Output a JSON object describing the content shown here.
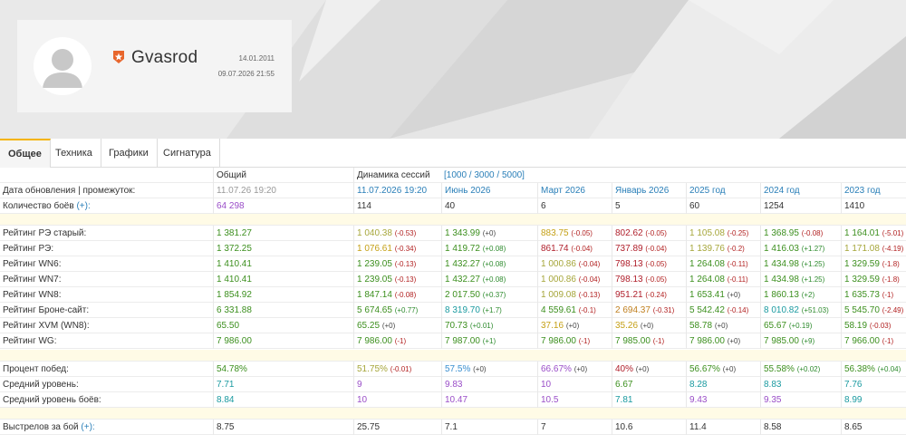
{
  "profile": {
    "nickname": "Gvasrod",
    "registered": "14.01.2011",
    "last_battle": "09.07.2026 21:55"
  },
  "tabs": [
    {
      "label": "Общее",
      "active": true
    },
    {
      "label": "Техника",
      "active": false
    },
    {
      "label": "Графики",
      "active": false
    },
    {
      "label": "Сигнатура",
      "active": false
    }
  ],
  "header": {
    "general": "Общий",
    "dynamics": "Динамика сессий",
    "ranges": "[1000 / 3000 / 5000]"
  },
  "update_row": {
    "label": "Дата обновления | промежуток:",
    "values": [
      "11.07.26 19:20",
      "11.07.2026 19:20",
      "Июнь 2026",
      "Март 2026",
      "Январь 2026",
      "2025 год",
      "2024 год",
      "2023 год"
    ]
  },
  "battles_row": {
    "label": "Количество боёв",
    "plus": "(+):",
    "values": [
      "64 298",
      "114",
      "40",
      "6",
      "5",
      "60",
      "1254",
      "1410"
    ]
  },
  "ratings": [
    {
      "label": "Рейтинг РЭ старый:",
      "values": [
        {
          "v": "1 381.27",
          "c": "c-green",
          "d": ""
        },
        {
          "v": "1 040.38",
          "c": "c-olive",
          "d": "(-0.53)",
          "s": "neg"
        },
        {
          "v": "1 343.99",
          "c": "c-green",
          "d": "(+0)",
          "s": "zero"
        },
        {
          "v": "883.75",
          "c": "c-yellow",
          "d": "(-0.05)",
          "s": "neg"
        },
        {
          "v": "802.62",
          "c": "c-red",
          "d": "(-0.05)",
          "s": "neg"
        },
        {
          "v": "1 105.08",
          "c": "c-olive",
          "d": "(-0.25)",
          "s": "neg"
        },
        {
          "v": "1 368.95",
          "c": "c-green",
          "d": "(-0.08)",
          "s": "neg"
        },
        {
          "v": "1 164.01",
          "c": "c-green",
          "d": "(-5.01)",
          "s": "neg"
        }
      ]
    },
    {
      "label": "Рейтинг РЭ:",
      "values": [
        {
          "v": "1 372.25",
          "c": "c-green",
          "d": ""
        },
        {
          "v": "1 076.61",
          "c": "c-yellow",
          "d": "(-0.34)",
          "s": "neg"
        },
        {
          "v": "1 419.72",
          "c": "c-green",
          "d": "(+0.08)",
          "s": "pos"
        },
        {
          "v": "861.74",
          "c": "c-red",
          "d": "(-0.04)",
          "s": "neg"
        },
        {
          "v": "737.89",
          "c": "c-red",
          "d": "(-0.04)",
          "s": "neg"
        },
        {
          "v": "1 139.76",
          "c": "c-olive",
          "d": "(-0.2)",
          "s": "neg"
        },
        {
          "v": "1 416.03",
          "c": "c-green",
          "d": "(+1.27)",
          "s": "pos"
        },
        {
          "v": "1 171.08",
          "c": "c-olive",
          "d": "(-4.19)",
          "s": "neg"
        }
      ]
    },
    {
      "label": "Рейтинг WN6:",
      "values": [
        {
          "v": "1 410.41",
          "c": "c-green",
          "d": ""
        },
        {
          "v": "1 239.05",
          "c": "c-green",
          "d": "(-0.13)",
          "s": "neg"
        },
        {
          "v": "1 432.27",
          "c": "c-green",
          "d": "(+0.08)",
          "s": "pos"
        },
        {
          "v": "1 000.86",
          "c": "c-olive",
          "d": "(-0.04)",
          "s": "neg"
        },
        {
          "v": "798.13",
          "c": "c-red",
          "d": "(-0.05)",
          "s": "neg"
        },
        {
          "v": "1 264.08",
          "c": "c-green",
          "d": "(-0.11)",
          "s": "neg"
        },
        {
          "v": "1 434.98",
          "c": "c-green",
          "d": "(+1.25)",
          "s": "pos"
        },
        {
          "v": "1 329.59",
          "c": "c-green",
          "d": "(-1.8)",
          "s": "neg"
        }
      ]
    },
    {
      "label": "Рейтинг WN7:",
      "values": [
        {
          "v": "1 410.41",
          "c": "c-green",
          "d": ""
        },
        {
          "v": "1 239.05",
          "c": "c-green",
          "d": "(-0.13)",
          "s": "neg"
        },
        {
          "v": "1 432.27",
          "c": "c-green",
          "d": "(+0.08)",
          "s": "pos"
        },
        {
          "v": "1 000.86",
          "c": "c-olive",
          "d": "(-0.04)",
          "s": "neg"
        },
        {
          "v": "798.13",
          "c": "c-red",
          "d": "(-0.05)",
          "s": "neg"
        },
        {
          "v": "1 264.08",
          "c": "c-green",
          "d": "(-0.11)",
          "s": "neg"
        },
        {
          "v": "1 434.98",
          "c": "c-green",
          "d": "(+1.25)",
          "s": "pos"
        },
        {
          "v": "1 329.59",
          "c": "c-green",
          "d": "(-1.8)",
          "s": "neg"
        }
      ]
    },
    {
      "label": "Рейтинг WN8:",
      "values": [
        {
          "v": "1 854.92",
          "c": "c-green",
          "d": ""
        },
        {
          "v": "1 847.14",
          "c": "c-green",
          "d": "(-0.08)",
          "s": "neg"
        },
        {
          "v": "2 017.50",
          "c": "c-green",
          "d": "(+0.37)",
          "s": "pos"
        },
        {
          "v": "1 009.08",
          "c": "c-olive",
          "d": "(-0.13)",
          "s": "neg"
        },
        {
          "v": "951.21",
          "c": "c-red",
          "d": "(-0.24)",
          "s": "neg"
        },
        {
          "v": "1 653.41",
          "c": "c-green",
          "d": "(+0)",
          "s": "zero"
        },
        {
          "v": "1 860.13",
          "c": "c-green",
          "d": "(+2)",
          "s": "pos"
        },
        {
          "v": "1 635.73",
          "c": "c-green",
          "d": "(-1)",
          "s": "neg"
        }
      ]
    },
    {
      "label": "Рейтинг Броне-сайт:",
      "values": [
        {
          "v": "6 331.88",
          "c": "c-green",
          "d": ""
        },
        {
          "v": "5 674.65",
          "c": "c-green",
          "d": "(+0.77)",
          "s": "pos"
        },
        {
          "v": "8 319.70",
          "c": "c-teal",
          "d": "(+1.7)",
          "s": "pos"
        },
        {
          "v": "4 559.61",
          "c": "c-green",
          "d": "(-0.1)",
          "s": "neg"
        },
        {
          "v": "2 694.37",
          "c": "c-orange",
          "d": "(-0.31)",
          "s": "neg"
        },
        {
          "v": "5 542.42",
          "c": "c-green",
          "d": "(-0.14)",
          "s": "neg"
        },
        {
          "v": "8 010.82",
          "c": "c-teal",
          "d": "(+51.03)",
          "s": "pos"
        },
        {
          "v": "5 545.70",
          "c": "c-green",
          "d": "(-2.49)",
          "s": "neg"
        }
      ]
    },
    {
      "label": "Рейтинг XVM (WN8):",
      "values": [
        {
          "v": "65.50",
          "c": "c-green",
          "d": ""
        },
        {
          "v": "65.25",
          "c": "c-green",
          "d": "(+0)",
          "s": "zero"
        },
        {
          "v": "70.73",
          "c": "c-green",
          "d": "(+0.01)",
          "s": "pos"
        },
        {
          "v": "37.16",
          "c": "c-yellow",
          "d": "(+0)",
          "s": "zero"
        },
        {
          "v": "35.26",
          "c": "c-yellow",
          "d": "(+0)",
          "s": "zero"
        },
        {
          "v": "58.78",
          "c": "c-green",
          "d": "(+0)",
          "s": "zero"
        },
        {
          "v": "65.67",
          "c": "c-green",
          "d": "(+0.19)",
          "s": "pos"
        },
        {
          "v": "58.19",
          "c": "c-green",
          "d": "(-0.03)",
          "s": "neg"
        }
      ]
    },
    {
      "label": "Рейтинг WG:",
      "values": [
        {
          "v": "7 986.00",
          "c": "c-green",
          "d": ""
        },
        {
          "v": "7 986.00",
          "c": "c-green",
          "d": "(-1)",
          "s": "neg"
        },
        {
          "v": "7 987.00",
          "c": "c-green",
          "d": "(+1)",
          "s": "pos"
        },
        {
          "v": "7 986.00",
          "c": "c-green",
          "d": "(-1)",
          "s": "neg"
        },
        {
          "v": "7 985.00",
          "c": "c-green",
          "d": "(-1)",
          "s": "neg"
        },
        {
          "v": "7 986.00",
          "c": "c-green",
          "d": "(+0)",
          "s": "zero"
        },
        {
          "v": "7 985.00",
          "c": "c-green",
          "d": "(+9)",
          "s": "pos"
        },
        {
          "v": "7 966.00",
          "c": "c-green",
          "d": "(-1)",
          "s": "neg"
        }
      ]
    }
  ],
  "performance": [
    {
      "label": "Процент побед:",
      "values": [
        {
          "v": "54.78%",
          "c": "c-green",
          "d": ""
        },
        {
          "v": "51.75%",
          "c": "c-olive",
          "d": "(-0.01)",
          "s": "neg"
        },
        {
          "v": "57.5%",
          "c": "c-blue",
          "d": "(+0)",
          "s": "zero"
        },
        {
          "v": "66.67%",
          "c": "c-purple",
          "d": "(+0)",
          "s": "zero"
        },
        {
          "v": "40%",
          "c": "c-red",
          "d": "(+0)",
          "s": "zero"
        },
        {
          "v": "56.67%",
          "c": "c-green",
          "d": "(+0)",
          "s": "zero"
        },
        {
          "v": "55.58%",
          "c": "c-green",
          "d": "(+0.02)",
          "s": "pos"
        },
        {
          "v": "56.38%",
          "c": "c-green",
          "d": "(+0.04)",
          "s": "pos"
        }
      ]
    },
    {
      "label": "Средний уровень:",
      "values": [
        {
          "v": "7.71",
          "c": "c-teal",
          "d": ""
        },
        {
          "v": "9",
          "c": "c-purple",
          "d": ""
        },
        {
          "v": "9.83",
          "c": "c-purple",
          "d": ""
        },
        {
          "v": "10",
          "c": "c-purple",
          "d": ""
        },
        {
          "v": "6.67",
          "c": "c-green",
          "d": ""
        },
        {
          "v": "8.28",
          "c": "c-teal",
          "d": ""
        },
        {
          "v": "8.83",
          "c": "c-teal",
          "d": ""
        },
        {
          "v": "7.76",
          "c": "c-teal",
          "d": ""
        }
      ]
    },
    {
      "label": "Средний уровень боёв:",
      "values": [
        {
          "v": "8.84",
          "c": "c-teal",
          "d": ""
        },
        {
          "v": "10",
          "c": "c-purple",
          "d": ""
        },
        {
          "v": "10.47",
          "c": "c-purple",
          "d": ""
        },
        {
          "v": "10.5",
          "c": "c-purple",
          "d": ""
        },
        {
          "v": "7.81",
          "c": "c-teal",
          "d": ""
        },
        {
          "v": "9.43",
          "c": "c-purple",
          "d": ""
        },
        {
          "v": "9.35",
          "c": "c-purple",
          "d": ""
        },
        {
          "v": "8.99",
          "c": "c-teal",
          "d": ""
        }
      ]
    }
  ],
  "shots_row": {
    "label": "Выстрелов за бой",
    "plus": "(+):",
    "values": [
      "8.75",
      "25.75",
      "7.1",
      "7",
      "10.6",
      "11.4",
      "8.58",
      "8.65"
    ]
  }
}
